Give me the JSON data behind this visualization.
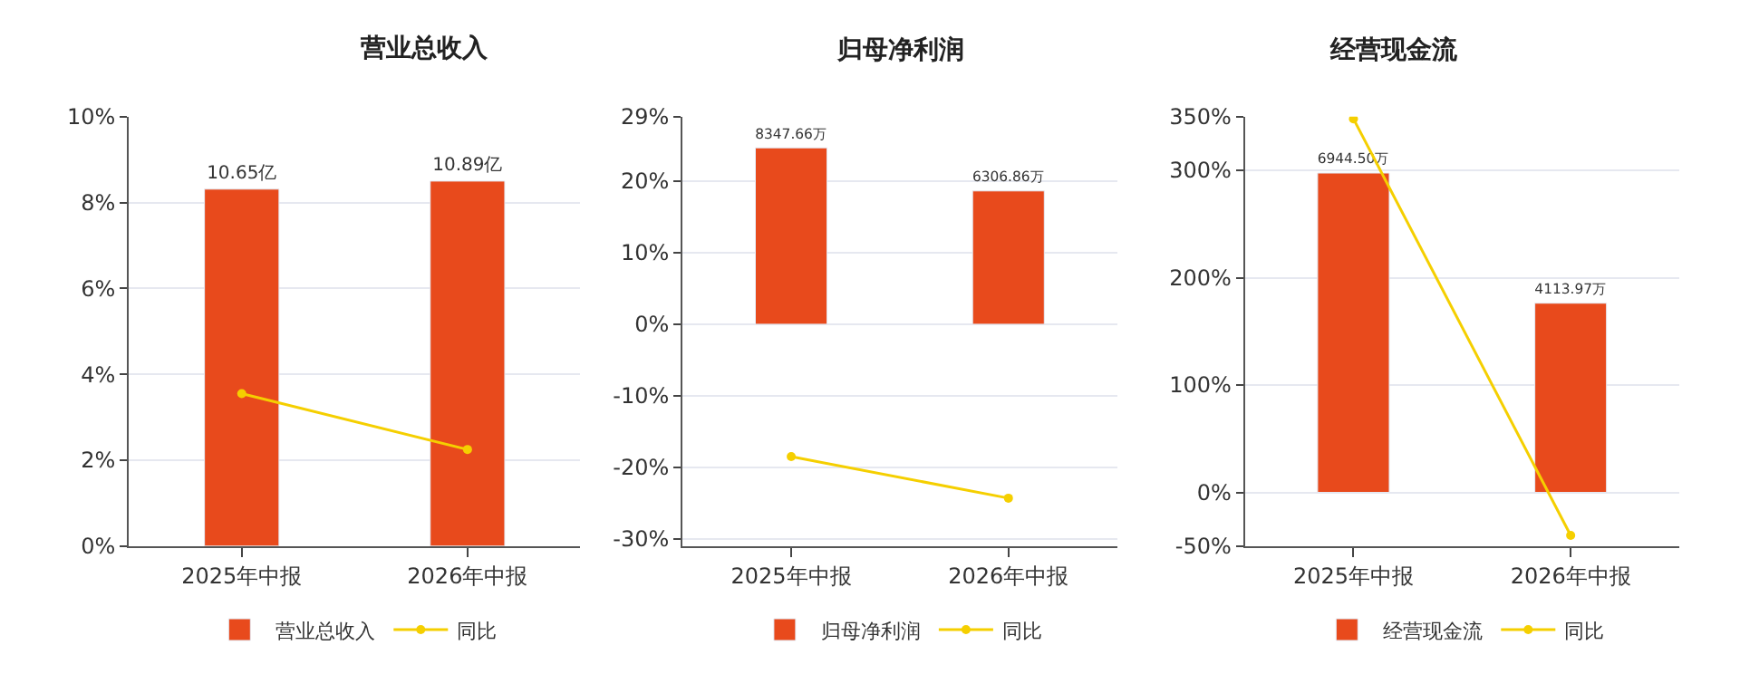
{
  "chart_data": [
    {
      "type": "bar",
      "title": "营业总收入",
      "categories": [
        "2025年中报",
        "2026年中报"
      ],
      "series": [
        {
          "name": "营业总收入",
          "axis": "y2",
          "color": "#e84a1c",
          "values": [
            10.65,
            10.89
          ],
          "value_labels": [
            "10.65亿",
            "10.89亿"
          ]
        },
        {
          "name": "同比",
          "type": "line",
          "color": "#f5cf00",
          "values": [
            3.55,
            2.25
          ]
        }
      ],
      "ylim": [
        0,
        10
      ],
      "yticks": [
        {
          "value": 0,
          "label": "0%"
        },
        {
          "value": 2,
          "label": "2%"
        },
        {
          "value": 4,
          "label": "4%"
        },
        {
          "value": 6,
          "label": "6%"
        },
        {
          "value": 8,
          "label": "8%"
        },
        {
          "value": 10,
          "label": "10%"
        }
      ],
      "tick_labels": "y",
      "grid": "y",
      "legend": "bottom",
      "marker": "circle"
    },
    {
      "type": "bar",
      "title": "归母净利润",
      "categories": [
        "2025年中报",
        "2026年中报"
      ],
      "series": [
        {
          "name": "归母净利润",
          "axis": "y2",
          "color": "#e84a1c",
          "values": [
            8347.66,
            6306.86
          ],
          "value_labels": [
            "8347.66万",
            "6306.86万"
          ]
        },
        {
          "name": "同比",
          "type": "line",
          "color": "#f5cf00",
          "values": [
            -18.5,
            -24.3
          ]
        }
      ],
      "ylim": [
        -31,
        29
      ],
      "yticks": [
        {
          "value": -30,
          "label": "-30%"
        },
        {
          "value": -20,
          "label": "-20%"
        },
        {
          "value": -10,
          "label": "-10%"
        },
        {
          "value": 0,
          "label": "0%"
        },
        {
          "value": 10,
          "label": "10%"
        },
        {
          "value": 20,
          "label": "20%"
        },
        {
          "value": 29,
          "label": "29%"
        }
      ],
      "tick_labels": "y",
      "grid": "y",
      "legend": "bottom",
      "marker": "circle"
    },
    {
      "type": "bar",
      "title": "经营现金流",
      "categories": [
        "2025年中报",
        "2026年中报"
      ],
      "series": [
        {
          "name": "经营现金流",
          "axis": "y2",
          "color": "#e84a1c",
          "values": [
            6944.5,
            4113.97
          ],
          "value_labels": [
            "6944.50万",
            "4113.97万"
          ]
        },
        {
          "name": "同比",
          "type": "line",
          "color": "#f5cf00",
          "values": [
            348,
            -40
          ]
        }
      ],
      "ylim": [
        -50,
        350
      ],
      "yticks": [
        {
          "value": -50,
          "label": "-50%"
        },
        {
          "value": 0,
          "label": "0%"
        },
        {
          "value": 100,
          "label": "100%"
        },
        {
          "value": 200,
          "label": "200%"
        },
        {
          "value": 300,
          "label": "300%"
        },
        {
          "value": 350,
          "label": "350%"
        }
      ],
      "tick_labels": "y",
      "grid": "y",
      "legend": "bottom",
      "marker": "circle"
    }
  ]
}
